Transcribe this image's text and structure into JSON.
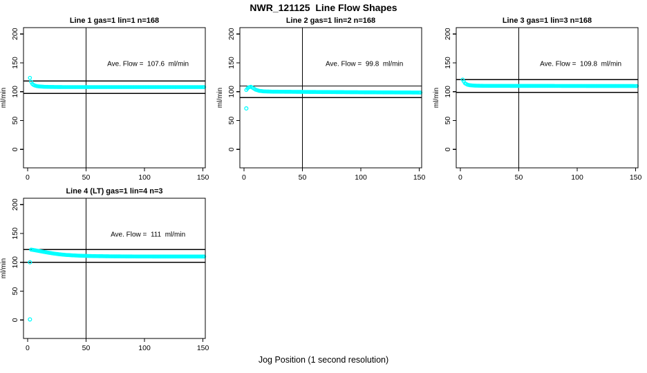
{
  "figure": {
    "title": "NWR_121125  Line Flow Shapes",
    "xlabel": "Jog Position (1 second resolution)",
    "background_color": "#ffffff",
    "axis_color": "#000000",
    "marker_color": "#00ffff"
  },
  "chart_data": {
    "type": "scatter",
    "marker": "open-circle",
    "ylabel": "ml/min",
    "xticks": [
      0,
      50,
      100,
      150
    ],
    "yticks": [
      0,
      50,
      100,
      150,
      200
    ],
    "xlim": [
      -3.5,
      152
    ],
    "ylim": [
      -32,
      211
    ],
    "vline_x": 50,
    "annotation_anchor": {
      "x": 103,
      "y": 148
    },
    "plots": [
      {
        "title": "Line 1 gas=1 lin=1 n=168",
        "line": 1,
        "gas": 1,
        "lin": 1,
        "n": 168,
        "ave_flow": 107.6,
        "annotation": "Ave. Flow =  107.6  ml/min",
        "hlines": [
          118.4,
          96.8
        ],
        "profile": [
          [
            2,
            124
          ],
          [
            3,
            117
          ],
          [
            4,
            113.5
          ],
          [
            5,
            111.8
          ],
          [
            6,
            110.8
          ],
          [
            8,
            109.6
          ],
          [
            10,
            109.1
          ],
          [
            14,
            108.5
          ],
          [
            20,
            108.2
          ],
          [
            30,
            108
          ],
          [
            151,
            108
          ]
        ],
        "outliers": []
      },
      {
        "title": "Line 2 gas=1 lin=2 n=168",
        "line": 2,
        "gas": 1,
        "lin": 2,
        "n": 168,
        "ave_flow": 99.8,
        "annotation": "Ave. Flow =  99.8  ml/min",
        "hlines": [
          109.8,
          89.8
        ],
        "profile": [
          [
            2,
            103
          ],
          [
            3,
            105.5
          ],
          [
            4,
            107.5
          ],
          [
            6,
            108.5
          ],
          [
            8,
            106
          ],
          [
            10,
            103.5
          ],
          [
            13,
            101.5
          ],
          [
            17,
            100.5
          ],
          [
            25,
            100
          ],
          [
            60,
            99.5
          ],
          [
            100,
            99
          ],
          [
            151,
            98.5
          ]
        ],
        "outliers": [
          [
            2,
            71
          ]
        ]
      },
      {
        "title": "Line 3 gas=1 lin=3 n=168",
        "line": 3,
        "gas": 1,
        "lin": 3,
        "n": 168,
        "ave_flow": 109.8,
        "annotation": "Ave. Flow =  109.8  ml/min",
        "hlines": [
          120.8,
          98.8
        ],
        "profile": [
          [
            2,
            121
          ],
          [
            3,
            117.5
          ],
          [
            4,
            114.5
          ],
          [
            6,
            112.2
          ],
          [
            8,
            111.2
          ],
          [
            12,
            110.5
          ],
          [
            20,
            110.1
          ],
          [
            60,
            110
          ],
          [
            151,
            109.8
          ]
        ],
        "outliers": []
      },
      {
        "title": "Line 4 (LT) gas=1 lin=4 n=3",
        "line": 4,
        "gas": 1,
        "lin": 4,
        "n": 3,
        "ave_flow": 111,
        "annotation": "Ave. Flow =  111  ml/min",
        "hlines": [
          122.1,
          99.9
        ],
        "profile": [
          [
            3,
            122
          ],
          [
            6,
            121
          ],
          [
            10,
            119.5
          ],
          [
            14,
            118
          ],
          [
            18,
            116.6
          ],
          [
            22,
            115.3
          ],
          [
            27,
            113.9
          ],
          [
            32,
            112.9
          ],
          [
            38,
            112.1
          ],
          [
            45,
            111.4
          ],
          [
            55,
            110.8
          ],
          [
            70,
            110.4
          ],
          [
            90,
            110.1
          ],
          [
            120,
            110
          ],
          [
            151,
            110
          ]
        ],
        "outliers": [
          [
            2,
            100
          ],
          [
            2,
            1
          ]
        ]
      }
    ]
  }
}
